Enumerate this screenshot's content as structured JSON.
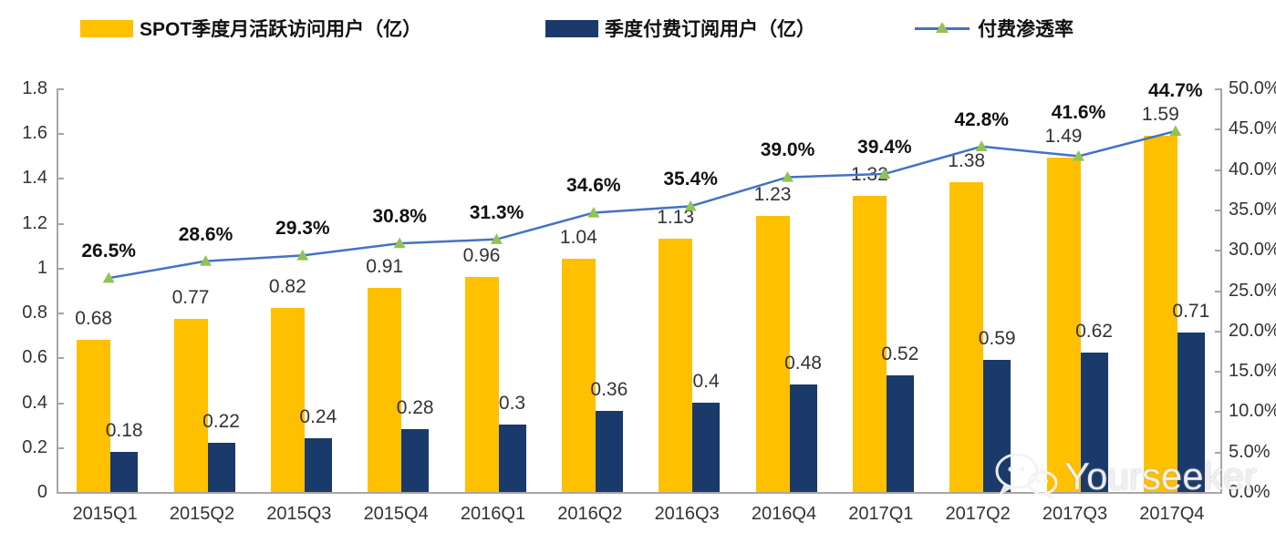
{
  "legend": {
    "items": [
      {
        "label": "SPOT季度月活跃访问用户（亿）",
        "color": "#FFC000",
        "type": "bar"
      },
      {
        "label": "季度付费订阅用户（亿）",
        "color": "#1A3A6B",
        "type": "bar"
      },
      {
        "label": "付费渗透率",
        "color": "#4472C4",
        "marker_color": "#92C353",
        "marker": "triangle",
        "type": "line"
      }
    ]
  },
  "watermark": {
    "text": "Yourseeker",
    "icon": "wechat-chat-bubbles-icon"
  },
  "chart_data": {
    "type": "combo-bar-line",
    "title": "",
    "categories": [
      "2015Q1",
      "2015Q2",
      "2015Q3",
      "2015Q4",
      "2016Q1",
      "2016Q2",
      "2016Q3",
      "2016Q4",
      "2017Q1",
      "2017Q2",
      "2017Q3",
      "2017Q4"
    ],
    "series": [
      {
        "name": "SPOT季度月活跃访问用户（亿）",
        "type": "bar",
        "axis": "left",
        "color": "#FFC000",
        "values": [
          0.68,
          0.77,
          0.82,
          0.91,
          0.96,
          1.04,
          1.13,
          1.23,
          1.32,
          1.38,
          1.49,
          1.59
        ],
        "labels": [
          "0.68",
          "0.77",
          "0.82",
          "0.91",
          "0.96",
          "1.04",
          "1.13",
          "1.23",
          "1.32",
          "1.38",
          "1.49",
          "1.59"
        ]
      },
      {
        "name": "季度付费订阅用户（亿）",
        "type": "bar",
        "axis": "left",
        "color": "#1A3A6B",
        "values": [
          0.18,
          0.22,
          0.24,
          0.28,
          0.3,
          0.36,
          0.4,
          0.48,
          0.52,
          0.59,
          0.62,
          0.71
        ],
        "labels": [
          "0.18",
          "0.22",
          "0.24",
          "0.28",
          "0.3",
          "0.36",
          "0.4",
          "0.48",
          "0.52",
          "0.59",
          "0.62",
          "0.71"
        ]
      },
      {
        "name": "付费渗透率",
        "type": "line",
        "axis": "right",
        "color": "#4472C4",
        "marker": "triangle",
        "marker_color": "#92C353",
        "values": [
          26.5,
          28.6,
          29.3,
          30.8,
          31.3,
          34.6,
          35.4,
          39.0,
          39.4,
          42.8,
          41.6,
          44.7
        ],
        "labels": [
          "26.5%",
          "28.6%",
          "29.3%",
          "30.8%",
          "31.3%",
          "34.6%",
          "35.4%",
          "39.0%",
          "39.4%",
          "42.8%",
          "41.6%",
          "44.7%"
        ]
      }
    ],
    "left_axis": {
      "min": 0,
      "max": 1.8,
      "step": 0.2,
      "ticks": [
        "0",
        "0.2",
        "0.4",
        "0.6",
        "0.8",
        "1",
        "1.2",
        "1.4",
        "1.6",
        "1.8"
      ]
    },
    "right_axis": {
      "min": 0,
      "max": 50,
      "step": 5,
      "ticks": [
        "0.0%",
        "5.0%",
        "10.0%",
        "15.0%",
        "20.0%",
        "25.0%",
        "30.0%",
        "35.0%",
        "40.0%",
        "45.0%",
        "50.0%"
      ]
    },
    "grid": false,
    "legend_position": "top"
  }
}
